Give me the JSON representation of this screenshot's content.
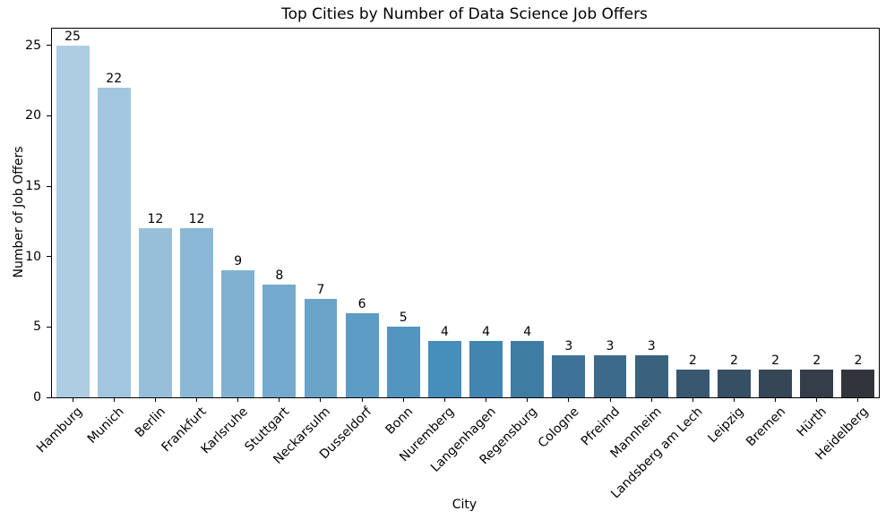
{
  "chart_data": {
    "type": "bar",
    "title": "Top Cities by Number of Data Science Job Offers",
    "xlabel": "City",
    "ylabel": "Number of Job Offers",
    "categories": [
      "Hamburg",
      "Munich",
      "Berlin",
      "Frankfurt",
      "Karlsruhe",
      "Stuttgart",
      "Neckarsulm",
      "Dusseldorf",
      "Bonn",
      "Nuremberg",
      "Langenhagen",
      "Regensburg",
      "Cologne",
      "Pfreimd",
      "Mannheim",
      "Landsberg am Lech",
      "Leipzig",
      "Bremen",
      "Hürth",
      "Heidelberg"
    ],
    "values": [
      25,
      22,
      12,
      12,
      9,
      8,
      7,
      6,
      5,
      4,
      4,
      4,
      3,
      3,
      3,
      2,
      2,
      2,
      2,
      2
    ],
    "bar_colors": [
      "#aecde3",
      "#a2c6df",
      "#97bfda",
      "#8bb8d6",
      "#80b1d1",
      "#74aacd",
      "#69a3c8",
      "#5d9cc4",
      "#5295bf",
      "#468ebb",
      "#4185b1",
      "#3f7ca4",
      "#3e7397",
      "#3c6a8a",
      "#3a617d",
      "#395870",
      "#374f63",
      "#354656",
      "#343d49",
      "#32343c"
    ],
    "yticks": [
      0,
      5,
      10,
      15,
      20,
      25
    ],
    "ylim": [
      0,
      26.2
    ],
    "bar_width_fraction": 0.8,
    "grid": false,
    "legend": null,
    "x_tick_rotation_deg": 45,
    "axis_color": "#000000",
    "background_color": "#ffffff"
  }
}
